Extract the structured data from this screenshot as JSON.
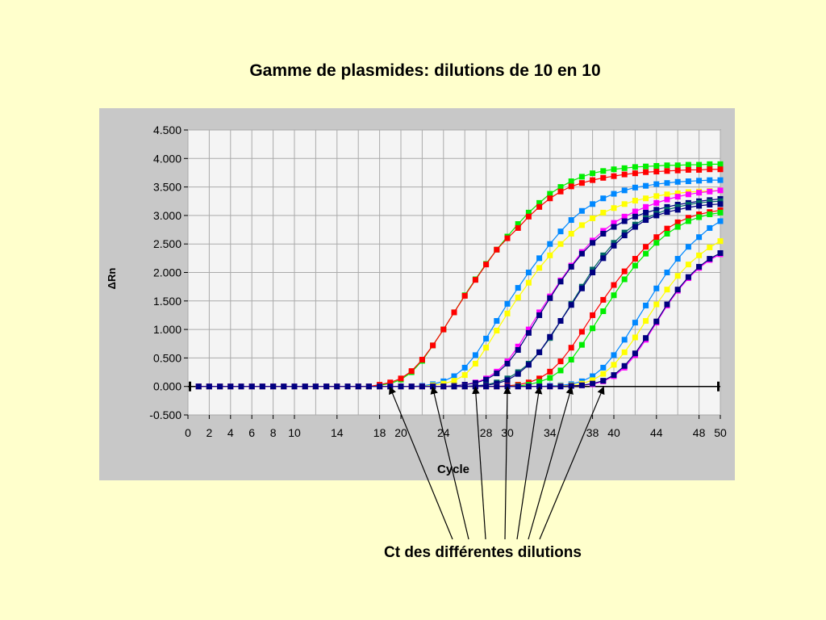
{
  "slide": {
    "title": "Gamme de plasmides:  dilutions de 10 en 10",
    "caption": "Ct des différentes dilutions"
  },
  "chart_data": {
    "type": "line",
    "xlabel": "Cycle",
    "ylabel": "ΔRn",
    "xlim": [
      0,
      50
    ],
    "ylim": [
      -0.5,
      4.5
    ],
    "xticks": [
      0,
      2,
      4,
      6,
      8,
      10,
      14,
      18,
      20,
      24,
      28,
      30,
      34,
      38,
      40,
      44,
      48,
      50
    ],
    "xtick_labels": [
      "0",
      "2",
      "4",
      "6",
      "8",
      "10",
      "14",
      "18",
      "20",
      "24",
      "28",
      "30",
      "34",
      "38",
      "40",
      "44",
      "48",
      "50"
    ],
    "yticks": [
      -0.5,
      0,
      0.5,
      1,
      1.5,
      2,
      2.5,
      3,
      3.5,
      4,
      4.5
    ],
    "ytick_labels": [
      "-0.500",
      "0.000",
      "0.500",
      "1.000",
      "1.500",
      "2.000",
      "2.500",
      "3.000",
      "3.500",
      "4.000",
      "4.500"
    ],
    "grid": true,
    "threshold": 0,
    "ct_values": [
      19,
      23,
      27,
      30,
      33,
      36,
      39
    ],
    "x": [
      1,
      2,
      3,
      4,
      5,
      6,
      7,
      8,
      9,
      10,
      11,
      12,
      13,
      14,
      15,
      16,
      17,
      18,
      19,
      20,
      21,
      22,
      23,
      24,
      25,
      26,
      27,
      28,
      29,
      30,
      31,
      32,
      33,
      34,
      35,
      36,
      37,
      38,
      39,
      40,
      41,
      42,
      43,
      44,
      45,
      46,
      47,
      48,
      49,
      50
    ],
    "series": [
      {
        "color": "#00ee00",
        "values": [
          0,
          0,
          0,
          0,
          0,
          0,
          0,
          0,
          0,
          0,
          0,
          0,
          0,
          0,
          0,
          0,
          0,
          0.02,
          0.05,
          0.12,
          0.25,
          0.45,
          0.72,
          1.0,
          1.3,
          1.6,
          1.88,
          2.15,
          2.4,
          2.63,
          2.85,
          3.05,
          3.22,
          3.38,
          3.5,
          3.6,
          3.68,
          3.74,
          3.78,
          3.81,
          3.83,
          3.85,
          3.86,
          3.87,
          3.88,
          3.88,
          3.89,
          3.89,
          3.9,
          3.9
        ]
      },
      {
        "color": "#ff0000",
        "values": [
          0,
          0,
          0,
          0,
          0,
          0,
          0,
          0,
          0,
          0,
          0,
          0,
          0,
          0,
          0,
          0,
          0,
          0.03,
          0.07,
          0.14,
          0.27,
          0.47,
          0.72,
          1.0,
          1.3,
          1.59,
          1.87,
          2.14,
          2.4,
          2.6,
          2.78,
          2.98,
          3.15,
          3.3,
          3.42,
          3.51,
          3.57,
          3.62,
          3.66,
          3.69,
          3.72,
          3.74,
          3.76,
          3.77,
          3.78,
          3.79,
          3.8,
          3.8,
          3.81,
          3.81
        ]
      },
      {
        "color": "#0088ff",
        "values": [
          0,
          0,
          0,
          0,
          0,
          0,
          0,
          0,
          0,
          0,
          0,
          0,
          0,
          0,
          0,
          0,
          0,
          0,
          0,
          0,
          0,
          0.01,
          0.04,
          0.09,
          0.18,
          0.33,
          0.55,
          0.84,
          1.15,
          1.45,
          1.73,
          2.0,
          2.25,
          2.5,
          2.72,
          2.92,
          3.08,
          3.2,
          3.3,
          3.38,
          3.44,
          3.49,
          3.52,
          3.55,
          3.57,
          3.59,
          3.6,
          3.61,
          3.62,
          3.62
        ]
      },
      {
        "color": "#ffff00",
        "values": [
          0,
          0,
          0,
          0,
          0,
          0,
          0,
          0,
          0,
          0,
          0,
          0,
          0,
          0,
          0,
          0,
          0,
          0,
          0,
          0,
          0,
          0,
          0.02,
          0.05,
          0.1,
          0.2,
          0.4,
          0.68,
          0.98,
          1.28,
          1.56,
          1.82,
          2.08,
          2.3,
          2.5,
          2.68,
          2.83,
          2.95,
          3.05,
          3.13,
          3.2,
          3.26,
          3.3,
          3.34,
          3.37,
          3.39,
          3.41,
          3.42,
          3.43,
          3.44
        ]
      },
      {
        "color": "#ff00ff",
        "values": [
          0,
          0,
          0,
          0,
          0,
          0,
          0,
          0,
          0,
          0,
          0,
          0,
          0,
          0,
          0,
          0,
          0,
          0,
          0,
          0,
          0,
          0,
          0,
          0,
          0.01,
          0.03,
          0.07,
          0.14,
          0.26,
          0.44,
          0.7,
          1.0,
          1.3,
          1.58,
          1.86,
          2.12,
          2.36,
          2.56,
          2.73,
          2.87,
          2.98,
          3.07,
          3.15,
          3.22,
          3.28,
          3.33,
          3.37,
          3.4,
          3.42,
          3.44
        ]
      },
      {
        "color": "#000080",
        "values": [
          0,
          0,
          0,
          0,
          0,
          0,
          0,
          0,
          0,
          0,
          0,
          0,
          0,
          0,
          0,
          0,
          0,
          0,
          0,
          0,
          0,
          0,
          0,
          0,
          0.01,
          0.03,
          0.06,
          0.12,
          0.23,
          0.4,
          0.64,
          0.94,
          1.25,
          1.55,
          1.84,
          2.1,
          2.33,
          2.52,
          2.68,
          2.8,
          2.9,
          2.98,
          3.05,
          3.1,
          3.15,
          3.19,
          3.22,
          3.25,
          3.27,
          3.29
        ]
      },
      {
        "color": "#006666",
        "values": [
          0,
          0,
          0,
          0,
          0,
          0,
          0,
          0,
          0,
          0,
          0,
          0,
          0,
          0,
          0,
          0,
          0,
          0,
          0,
          0,
          0,
          0,
          0,
          0,
          0,
          0,
          0.01,
          0.03,
          0.07,
          0.14,
          0.25,
          0.4,
          0.6,
          0.85,
          1.15,
          1.45,
          1.75,
          2.05,
          2.3,
          2.52,
          2.7,
          2.84,
          2.95,
          3.03,
          3.1,
          3.15,
          3.19,
          3.22,
          3.24,
          3.25
        ]
      },
      {
        "color": "#000080",
        "values": [
          0,
          0,
          0,
          0,
          0,
          0,
          0,
          0,
          0,
          0,
          0,
          0,
          0,
          0,
          0,
          0,
          0,
          0,
          0,
          0,
          0,
          0,
          0,
          0,
          0,
          0,
          0.01,
          0.02,
          0.05,
          0.11,
          0.22,
          0.38,
          0.6,
          0.87,
          1.15,
          1.43,
          1.72,
          2.0,
          2.25,
          2.47,
          2.65,
          2.8,
          2.92,
          3.0,
          3.06,
          3.1,
          3.14,
          3.17,
          3.19,
          3.2
        ]
      },
      {
        "color": "#ff0000",
        "values": [
          0,
          0,
          0,
          0,
          0,
          0,
          0,
          0,
          0,
          0,
          0,
          0,
          0,
          0,
          0,
          0,
          0,
          0,
          0,
          0,
          0,
          0,
          0,
          0,
          0,
          0,
          0,
          0,
          0,
          0.01,
          0.03,
          0.07,
          0.14,
          0.26,
          0.44,
          0.68,
          0.96,
          1.25,
          1.52,
          1.78,
          2.02,
          2.24,
          2.45,
          2.62,
          2.77,
          2.88,
          2.96,
          3.02,
          3.06,
          3.09
        ]
      },
      {
        "color": "#00ee00",
        "values": [
          0,
          0,
          0,
          0,
          0,
          0,
          0,
          0,
          0,
          0,
          0,
          0,
          0,
          0,
          0,
          0,
          0,
          0,
          0,
          0,
          0,
          0,
          0,
          0,
          0,
          0,
          0,
          0,
          0,
          0,
          0.01,
          0.03,
          0.08,
          0.15,
          0.28,
          0.47,
          0.73,
          1.02,
          1.32,
          1.6,
          1.88,
          2.12,
          2.33,
          2.52,
          2.68,
          2.8,
          2.9,
          2.97,
          3.02,
          3.05
        ]
      },
      {
        "color": "#0088ff",
        "values": [
          0,
          0,
          0,
          0,
          0,
          0,
          0,
          0,
          0,
          0,
          0,
          0,
          0,
          0,
          0,
          0,
          0,
          0,
          0,
          0,
          0,
          0,
          0,
          0,
          0,
          0,
          0,
          0,
          0,
          0,
          0,
          0,
          0,
          0.01,
          0.02,
          0.04,
          0.09,
          0.18,
          0.33,
          0.55,
          0.82,
          1.12,
          1.42,
          1.72,
          2.0,
          2.24,
          2.45,
          2.62,
          2.78,
          2.9
        ]
      },
      {
        "color": "#ffff00",
        "values": [
          0,
          0,
          0,
          0,
          0,
          0,
          0,
          0,
          0,
          0,
          0,
          0,
          0,
          0,
          0,
          0,
          0,
          0,
          0,
          0,
          0,
          0,
          0,
          0,
          0,
          0,
          0,
          0,
          0,
          0,
          0,
          0,
          0,
          0,
          0.01,
          0.02,
          0.05,
          0.11,
          0.22,
          0.38,
          0.6,
          0.86,
          1.15,
          1.44,
          1.7,
          1.94,
          2.14,
          2.3,
          2.44,
          2.55
        ]
      },
      {
        "color": "#ff00ff",
        "values": [
          0,
          0,
          0,
          0,
          0,
          0,
          0,
          0,
          0,
          0,
          0,
          0,
          0,
          0,
          0,
          0,
          0,
          0,
          0,
          0,
          0,
          0,
          0,
          0,
          0,
          0,
          0,
          0,
          0,
          0,
          0,
          0,
          0,
          0,
          0,
          0.01,
          0.02,
          0.04,
          0.09,
          0.18,
          0.33,
          0.55,
          0.82,
          1.12,
          1.42,
          1.68,
          1.9,
          2.08,
          2.22,
          2.32
        ]
      },
      {
        "color": "#000080",
        "values": [
          0,
          0,
          0,
          0,
          0,
          0,
          0,
          0,
          0,
          0,
          0,
          0,
          0,
          0,
          0,
          0,
          0,
          0,
          0,
          0,
          0,
          0,
          0,
          0,
          0,
          0,
          0,
          0,
          0,
          0,
          0,
          0,
          0,
          0,
          0,
          0.01,
          0.02,
          0.05,
          0.1,
          0.2,
          0.36,
          0.58,
          0.85,
          1.14,
          1.44,
          1.7,
          1.92,
          2.1,
          2.24,
          2.34
        ]
      }
    ]
  }
}
